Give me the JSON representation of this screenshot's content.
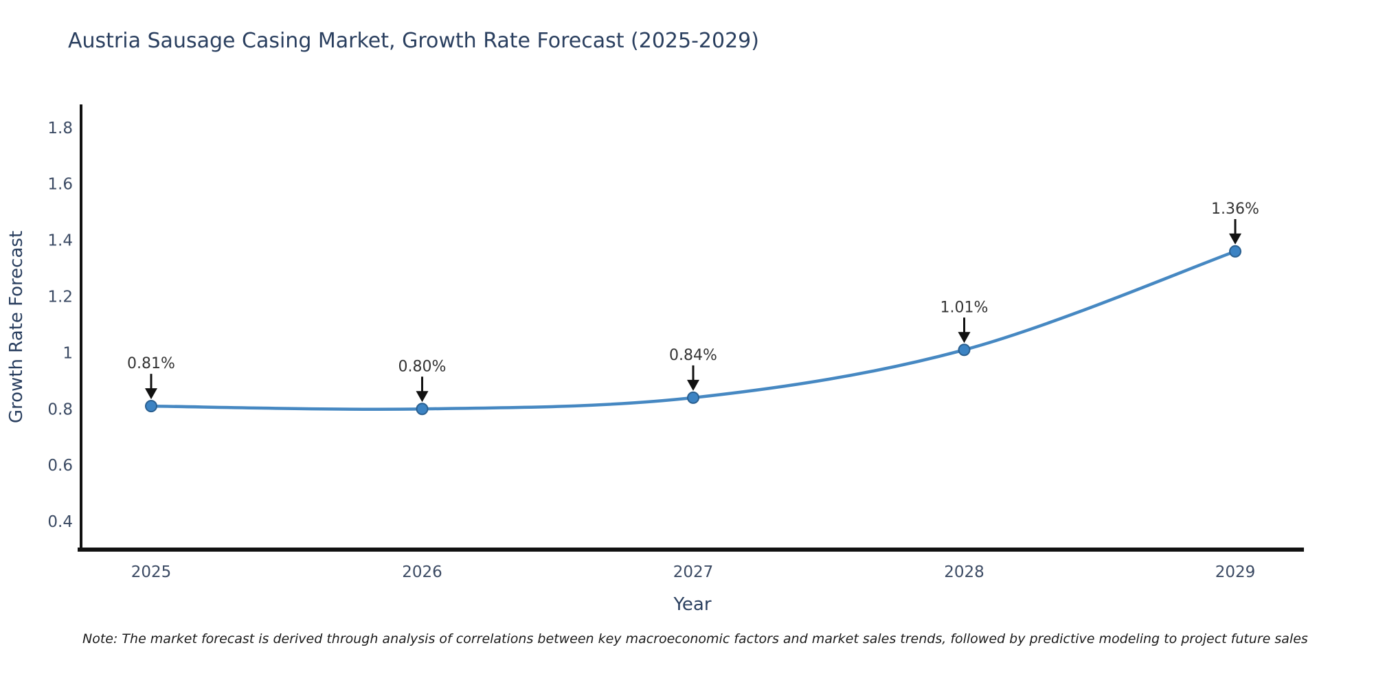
{
  "chart_data": {
    "type": "line",
    "title": "Austria Sausage Casing Market, Growth Rate Forecast (2025-2029)",
    "xlabel": "Year",
    "ylabel": "Growth Rate Forecast",
    "x": [
      2025,
      2026,
      2027,
      2028,
      2029
    ],
    "x_tick_labels": [
      "2025",
      "2026",
      "2027",
      "2028",
      "2029"
    ],
    "series": [
      {
        "name": "Growth Rate Forecast",
        "values": [
          0.81,
          0.8,
          0.84,
          1.01,
          1.36
        ],
        "point_labels": [
          "0.81%",
          "0.80%",
          "0.84%",
          "1.01%",
          "1.36%"
        ]
      }
    ],
    "y_ticks": [
      0.4,
      0.6,
      0.8,
      1,
      1.2,
      1.4,
      1.6,
      1.8
    ],
    "y_tick_labels": [
      "0.4",
      "0.6",
      "0.8",
      "1",
      "1.2",
      "1.4",
      "1.6",
      "1.8"
    ],
    "ylim": [
      0.3,
      1.88
    ],
    "grid": false,
    "legend_position": "none",
    "annotation_style": "value labels with downward black arrows pointing at markers",
    "line_shape": "spline",
    "colors": {
      "line": "#4688c2",
      "marker_fill": "#3c83c3",
      "marker_edge": "#2a5f8f",
      "axis": "#111111",
      "title_text": "#2a3f5f",
      "axis_label_text": "#2a3f5f",
      "tick_text": "#3b4a63",
      "annotation_text": "#333333",
      "annotation_arrow": "#111111",
      "background": "#ffffff"
    }
  },
  "note": {
    "text": "Note: The market forecast is derived through analysis of correlations between key macroeconomic factors and market sales trends, followed by predictive modeling to project future sales"
  }
}
